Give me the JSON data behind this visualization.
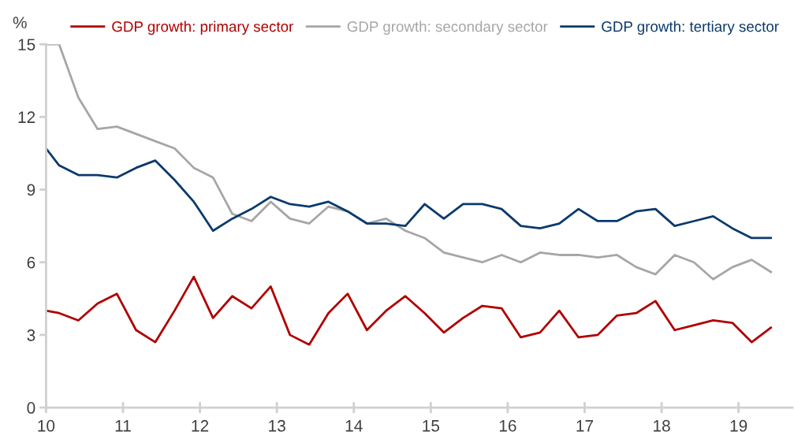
{
  "chart_data": {
    "type": "line",
    "ylabel": "%",
    "x": [
      10.0,
      10.17,
      10.42,
      10.67,
      10.92,
      11.17,
      11.42,
      11.67,
      11.92,
      12.17,
      12.42,
      12.67,
      12.92,
      13.17,
      13.42,
      13.67,
      13.92,
      14.17,
      14.42,
      14.67,
      14.92,
      15.17,
      15.42,
      15.67,
      15.92,
      16.17,
      16.42,
      16.67,
      16.92,
      17.17,
      17.42,
      17.67,
      17.92,
      18.17,
      18.42,
      18.67,
      18.92,
      19.17,
      19.42
    ],
    "series": [
      {
        "name": "GDP growth: primary sector",
        "color": "#b00000",
        "values": [
          4.0,
          3.9,
          3.6,
          4.3,
          4.7,
          3.2,
          2.7,
          4.0,
          5.4,
          3.7,
          4.6,
          4.1,
          5.0,
          3.0,
          2.6,
          3.9,
          4.7,
          3.2,
          4.0,
          4.6,
          3.9,
          3.1,
          3.7,
          4.2,
          4.1,
          2.9,
          3.1,
          4.0,
          2.9,
          3.0,
          3.8,
          3.9,
          4.4,
          3.2,
          3.4,
          3.6,
          3.5,
          2.7,
          3.3
        ]
      },
      {
        "name": "GDP growth: secondary sector",
        "color": "#a6a6a6",
        "values": [
          15.0,
          15.0,
          12.8,
          11.5,
          11.6,
          11.3,
          11.0,
          10.7,
          9.9,
          9.5,
          8.0,
          7.7,
          8.5,
          7.8,
          7.6,
          8.3,
          8.1,
          7.6,
          7.8,
          7.3,
          7.0,
          6.4,
          6.2,
          6.0,
          6.3,
          6.0,
          6.4,
          6.3,
          6.3,
          6.2,
          6.3,
          5.8,
          5.5,
          6.3,
          6.0,
          5.3,
          5.8,
          6.1,
          5.6
        ]
      },
      {
        "name": "GDP growth: tertiary sector",
        "color": "#0b3a6b",
        "values": [
          10.7,
          10.0,
          9.6,
          9.6,
          9.5,
          9.9,
          10.2,
          9.4,
          8.5,
          7.3,
          7.8,
          8.2,
          8.7,
          8.4,
          8.3,
          8.5,
          8.1,
          7.6,
          7.6,
          7.5,
          8.4,
          7.8,
          8.4,
          8.4,
          8.2,
          7.5,
          7.4,
          7.6,
          8.2,
          7.7,
          7.7,
          8.1,
          8.2,
          7.5,
          7.7,
          7.9,
          7.4,
          7.0,
          7.0
        ]
      }
    ],
    "xlim": [
      10,
      19.7
    ],
    "xticks": [
      10,
      11,
      12,
      13,
      14,
      15,
      16,
      17,
      18,
      19
    ],
    "ylim": [
      0,
      15
    ],
    "yticks": [
      0,
      3,
      6,
      9,
      12,
      15
    ],
    "legend": "top",
    "grid": false,
    "marker": "none",
    "line_style": "solid"
  }
}
